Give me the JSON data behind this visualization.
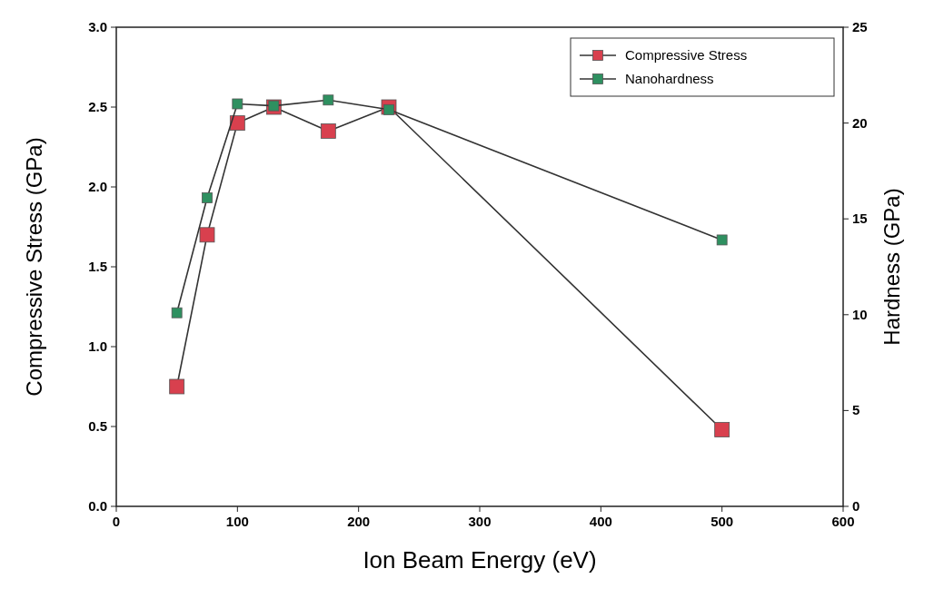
{
  "chart_data": {
    "type": "line",
    "xlabel": "Ion Beam Energy (eV)",
    "ylabel": "Compressive Stress (GPa)",
    "y2label": "Hardness (GPa)",
    "x": [
      50,
      75,
      100,
      130,
      175,
      225,
      500
    ],
    "xlim": [
      0,
      600
    ],
    "xticks": [
      0,
      100,
      200,
      300,
      400,
      500,
      600
    ],
    "ylim": [
      0,
      3
    ],
    "yticks": [
      {
        "value": 0,
        "label": "0.0"
      },
      {
        "value": 0.5,
        "label": "0.5"
      },
      {
        "value": 1,
        "label": "1.0"
      },
      {
        "value": 1.5,
        "label": "1.5"
      },
      {
        "value": 2,
        "label": "2.0"
      },
      {
        "value": 2.5,
        "label": "2.5"
      },
      {
        "value": 3,
        "label": "3.0"
      }
    ],
    "y2lim": [
      0,
      25
    ],
    "y2ticks": [
      0,
      5,
      10,
      15,
      20,
      25
    ],
    "series": [
      {
        "name": "Compressive Stress",
        "color": "#d8404e",
        "values": [
          0.75,
          1.7,
          2.4,
          2.5,
          2.35,
          2.5,
          0.48
        ]
      },
      {
        "name": "Nanohardness",
        "color": "#2e9060",
        "axis": "y2",
        "values": [
          10.1,
          16.1,
          21,
          20.9,
          21.2,
          20.7,
          13.9
        ]
      }
    ],
    "marker": "square",
    "legend": "top right"
  }
}
